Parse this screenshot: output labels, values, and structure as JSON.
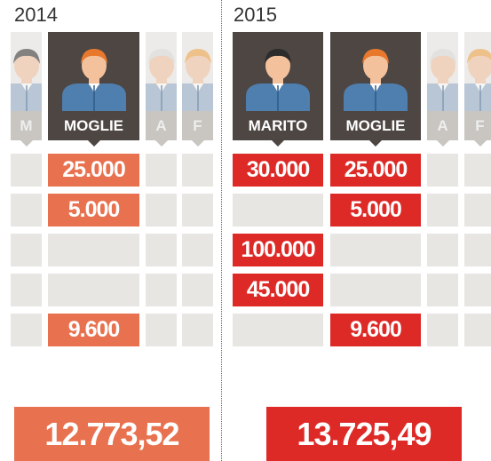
{
  "panels": [
    {
      "year": "2014",
      "color": "#e8714f",
      "columns": [
        "M",
        "MOGLIE",
        "A",
        "F"
      ],
      "rows": [
        [
          null,
          "25.000",
          null,
          null
        ],
        [
          null,
          "5.000",
          null,
          null
        ],
        [
          null,
          null,
          null,
          null
        ],
        [
          null,
          null,
          null,
          null
        ],
        [
          null,
          "9.600",
          null,
          null
        ]
      ],
      "total": "12.773,52"
    },
    {
      "year": "2015",
      "color": "#dd2a27",
      "columns": [
        "MARITO",
        "MOGLIE",
        "A",
        "F"
      ],
      "rows": [
        [
          "30.000",
          "25.000",
          null,
          null
        ],
        [
          null,
          "5.000",
          null,
          null
        ],
        [
          "100.000",
          null,
          null,
          null
        ],
        [
          "45.000",
          null,
          null,
          null
        ],
        [
          null,
          "9.600",
          null,
          null
        ]
      ],
      "total": "13.725,49"
    }
  ]
}
